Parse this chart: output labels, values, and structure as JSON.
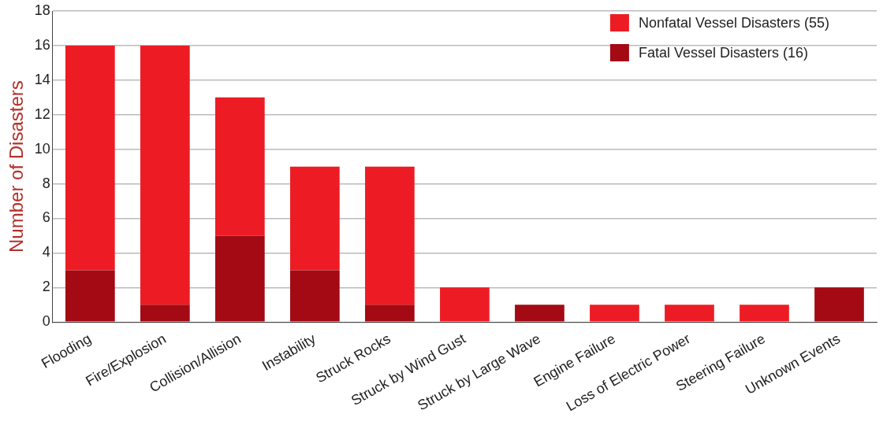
{
  "chart_data": {
    "type": "bar",
    "ylabel": "Number of Disasters",
    "stacked": true,
    "categories": [
      "Flooding",
      "Fire/Explosion",
      "Collision/Allision",
      "Instability",
      "Struck Rocks",
      "Struck by Wind Gust",
      "Struck by Large Wave",
      "Engine Failure",
      "Loss of Electric Power",
      "Steering Failure",
      "Unknown Events"
    ],
    "series": [
      {
        "name": "Fatal Vessel Disasters (16)",
        "color": "#a30a14",
        "values": [
          3,
          1,
          5,
          3,
          1,
          0,
          1,
          0,
          0,
          0,
          2
        ]
      },
      {
        "name": "Nonfatal Vessel Disasters (55)",
        "color": "#ed1c24",
        "values": [
          13,
          15,
          8,
          6,
          8,
          2,
          0,
          1,
          1,
          1,
          0
        ]
      }
    ],
    "ylim": [
      0,
      18
    ],
    "yticks": [
      0,
      2,
      4,
      6,
      8,
      10,
      12,
      14,
      16,
      18
    ],
    "grid": "y",
    "legend": "top right"
  }
}
